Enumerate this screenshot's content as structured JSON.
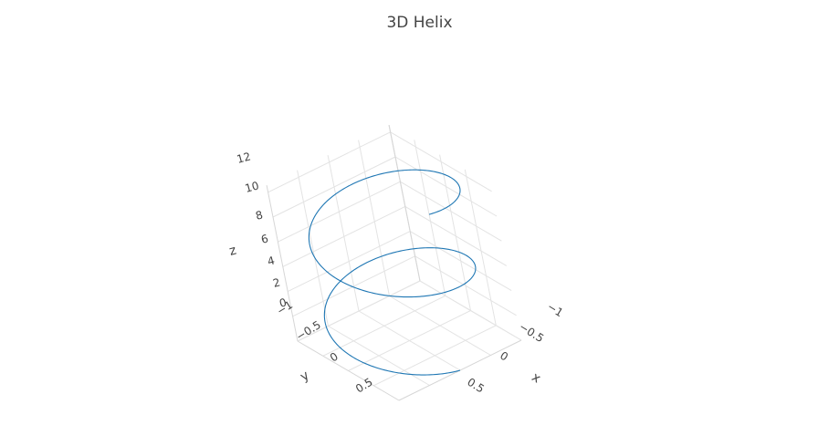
{
  "chart_data": {
    "type": "line3d",
    "title": "3D Helix",
    "axes": {
      "x": {
        "label": "x",
        "range": [
          -1,
          1
        ],
        "ticks": [
          -1,
          -0.5,
          0,
          0.5
        ],
        "tick_labels": [
          "−1",
          "−0.5",
          "0",
          "0.5"
        ]
      },
      "y": {
        "label": "y",
        "range": [
          -1,
          1
        ],
        "ticks": [
          -1,
          -0.5,
          0,
          0.5
        ],
        "tick_labels": [
          "−1",
          "−0.5",
          "0",
          "0.5"
        ]
      },
      "z": {
        "label": "z",
        "range": [
          0,
          12.566
        ],
        "ticks": [
          0,
          2,
          4,
          6,
          8,
          10,
          12
        ],
        "tick_labels": [
          "0",
          "2",
          "4",
          "6",
          "8",
          "10",
          "12"
        ]
      }
    },
    "series": [
      {
        "color": "#1f77b4",
        "x": "cos(t)",
        "y": "sin(t)",
        "z": "t",
        "t_range": [
          0,
          12.566
        ]
      }
    ],
    "grid": true,
    "colors": {
      "line": "#1f77b4",
      "grid": "#e3e3e3",
      "text": "#444444"
    }
  }
}
